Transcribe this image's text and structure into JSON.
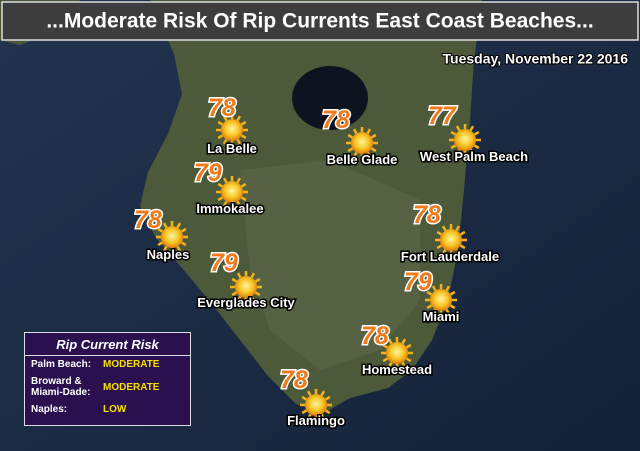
{
  "header": {
    "title": "...Moderate Risk Of Rip Currents East Coast Beaches...",
    "date": "Tuesday, November 22 2016"
  },
  "cities": [
    {
      "name": "La Belle",
      "temperature": 78
    },
    {
      "name": "Belle Glade",
      "temperature": 78
    },
    {
      "name": "West Palm Beach",
      "temperature": 77
    },
    {
      "name": "Immokalee",
      "temperature": 79
    },
    {
      "name": "Fort Lauderdale",
      "temperature": 78
    },
    {
      "name": "Naples",
      "temperature": 78
    },
    {
      "name": "Everglades City",
      "temperature": 79
    },
    {
      "name": "Miami",
      "temperature": 79
    },
    {
      "name": "Homestead",
      "temperature": 78
    },
    {
      "name": "Flamingo",
      "temperature": 78
    }
  ],
  "risk_box": {
    "title": "Rip Current Risk",
    "rows": [
      {
        "area": "Palm Beach:",
        "risk": "MODERATE"
      },
      {
        "area": "Broward & Miami-Dade:",
        "risk": "MODERATE"
      },
      {
        "area": "Naples:",
        "risk": "LOW"
      }
    ]
  }
}
